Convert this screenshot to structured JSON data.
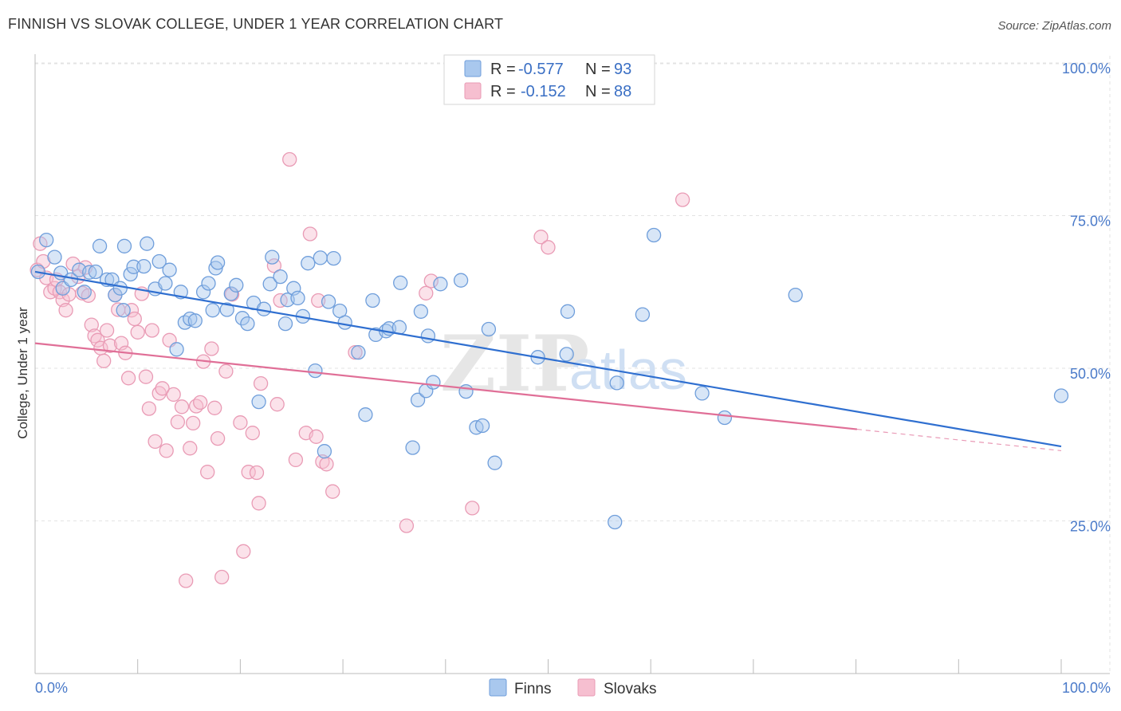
{
  "title": "FINNISH VS SLOVAK COLLEGE, UNDER 1 YEAR CORRELATION CHART",
  "source": "Source: ZipAtlas.com",
  "watermark": {
    "zip": "ZIP",
    "atlas": "atlas"
  },
  "colors": {
    "finns_fill": "#a9c8ee",
    "finns_stroke": "#6f9edb",
    "finns_line": "#2f6fd0",
    "slovaks_fill": "#f6bfd0",
    "slovaks_stroke": "#e99bb5",
    "slovaks_line": "#e06f97",
    "grid": "#e3e3e3",
    "axis_label": "#4a7ac9"
  },
  "legend": {
    "r_label": "R =",
    "n_label": "N =",
    "rows": [
      {
        "series": "Finns",
        "r": "-0.577",
        "n": "93"
      },
      {
        "series": "Slovaks",
        "r": "-0.152",
        "n": "88"
      }
    ]
  },
  "chart_data": {
    "type": "scatter",
    "title": "FINNISH VS SLOVAK COLLEGE, UNDER 1 YEAR CORRELATION CHART",
    "xlabel": "",
    "ylabel": "College, Under 1 year",
    "xlim": [
      0,
      100
    ],
    "ylim": [
      0,
      105
    ],
    "x_tick_labels": [
      "0.0%",
      "100.0%"
    ],
    "y_ticks": [
      25,
      50,
      75,
      100
    ],
    "y_tick_labels": [
      "25.0%",
      "50.0%",
      "75.0%",
      "100.0%"
    ],
    "grid": true,
    "legend_position": "top-center",
    "series": [
      {
        "name": "Finns",
        "trend": {
          "x0": 0,
          "y0": 65.8,
          "x1": 100,
          "y1": 37.2,
          "solid_to": 100
        },
        "points": [
          [
            0.3,
            65.8
          ],
          [
            1.1,
            71
          ],
          [
            1.9,
            68.2
          ],
          [
            2.5,
            65.6
          ],
          [
            2.7,
            63.1
          ],
          [
            3.5,
            64.5
          ],
          [
            4.3,
            66.1
          ],
          [
            4.8,
            62.5
          ],
          [
            5.3,
            65.7
          ],
          [
            5.9,
            65.8
          ],
          [
            6.3,
            70
          ],
          [
            7.0,
            64.5
          ],
          [
            7.5,
            64.5
          ],
          [
            7.8,
            62
          ],
          [
            8.3,
            63.1
          ],
          [
            8.6,
            59.5
          ],
          [
            8.7,
            70
          ],
          [
            9.3,
            65.4
          ],
          [
            9.6,
            66.6
          ],
          [
            10.6,
            66.7
          ],
          [
            10.9,
            70.4
          ],
          [
            11.7,
            63
          ],
          [
            12.1,
            67.5
          ],
          [
            12.7,
            63.9
          ],
          [
            13.1,
            66.1
          ],
          [
            13.8,
            53.1
          ],
          [
            14.2,
            62.5
          ],
          [
            14.6,
            57.5
          ],
          [
            15.1,
            58.1
          ],
          [
            15.6,
            57.8
          ],
          [
            16.4,
            62.5
          ],
          [
            16.9,
            63.9
          ],
          [
            17.3,
            59.5
          ],
          [
            17.6,
            66.4
          ],
          [
            17.8,
            67.3
          ],
          [
            18.7,
            59.6
          ],
          [
            19.1,
            62.2
          ],
          [
            19.6,
            63.6
          ],
          [
            20.2,
            58.2
          ],
          [
            20.7,
            57.3
          ],
          [
            21.3,
            60.7
          ],
          [
            21.8,
            44.5
          ],
          [
            22.3,
            59.7
          ],
          [
            22.9,
            63.8
          ],
          [
            23.1,
            68.2
          ],
          [
            23.9,
            65
          ],
          [
            24.4,
            57.3
          ],
          [
            24.6,
            61.2
          ],
          [
            25.2,
            63.1
          ],
          [
            25.6,
            61.5
          ],
          [
            26.1,
            58.5
          ],
          [
            26.6,
            67.2
          ],
          [
            27.3,
            49.6
          ],
          [
            27.8,
            68.1
          ],
          [
            28.2,
            36.4
          ],
          [
            28.6,
            60.9
          ],
          [
            29.1,
            68
          ],
          [
            29.7,
            59.4
          ],
          [
            30.2,
            57.5
          ],
          [
            31.5,
            52.6
          ],
          [
            32.2,
            42.4
          ],
          [
            32.9,
            61.1
          ],
          [
            33.2,
            55.5
          ],
          [
            34.2,
            56.1
          ],
          [
            34.5,
            56.5
          ],
          [
            35.5,
            56.7
          ],
          [
            35.6,
            64
          ],
          [
            36.8,
            37
          ],
          [
            37.3,
            44.8
          ],
          [
            37.6,
            59.3
          ],
          [
            38.1,
            46.3
          ],
          [
            38.3,
            55.3
          ],
          [
            38.8,
            47.7
          ],
          [
            39.5,
            63.8
          ],
          [
            41.5,
            64.4
          ],
          [
            42.0,
            46.2
          ],
          [
            43.0,
            40.3
          ],
          [
            43.6,
            40.6
          ],
          [
            44.2,
            56.4
          ],
          [
            44.8,
            34.5
          ],
          [
            49.0,
            51.8
          ],
          [
            51.8,
            52.3
          ],
          [
            51.9,
            59.3
          ],
          [
            56.5,
            24.8
          ],
          [
            56.7,
            47.6
          ],
          [
            59.2,
            58.8
          ],
          [
            60.3,
            71.8
          ],
          [
            65.0,
            45.9
          ],
          [
            67.2,
            41.9
          ],
          [
            74.1,
            62
          ],
          [
            100,
            45.5
          ]
        ]
      },
      {
        "name": "Slovaks",
        "trend": {
          "x0": 0,
          "y0": 54.1,
          "x1": 100,
          "y1": 36.5,
          "solid_to": 80.1
        },
        "points": [
          [
            0.2,
            66.1
          ],
          [
            0.5,
            70.4
          ],
          [
            0.8,
            67.5
          ],
          [
            1.1,
            64.8
          ],
          [
            1.5,
            62.5
          ],
          [
            1.9,
            63.1
          ],
          [
            2.1,
            64.5
          ],
          [
            2.4,
            62.5
          ],
          [
            2.7,
            61.2
          ],
          [
            3.0,
            59.5
          ],
          [
            3.3,
            62.1
          ],
          [
            3.7,
            67.1
          ],
          [
            4.2,
            65
          ],
          [
            4.6,
            62.3
          ],
          [
            4.9,
            66.5
          ],
          [
            5.2,
            61.9
          ],
          [
            5.5,
            57.1
          ],
          [
            5.8,
            55.3
          ],
          [
            6.1,
            54.6
          ],
          [
            6.4,
            53.3
          ],
          [
            6.7,
            51.2
          ],
          [
            7.0,
            56.2
          ],
          [
            7.3,
            53.7
          ],
          [
            7.8,
            62
          ],
          [
            8.1,
            59.6
          ],
          [
            8.4,
            54.1
          ],
          [
            8.8,
            52.5
          ],
          [
            9.1,
            48.4
          ],
          [
            9.4,
            59.5
          ],
          [
            9.7,
            58.1
          ],
          [
            10.0,
            55.9
          ],
          [
            10.4,
            62.2
          ],
          [
            10.8,
            48.6
          ],
          [
            11.1,
            43.4
          ],
          [
            11.4,
            56.2
          ],
          [
            11.7,
            38
          ],
          [
            12.1,
            45.9
          ],
          [
            12.4,
            46.7
          ],
          [
            12.8,
            36.5
          ],
          [
            13.1,
            54.6
          ],
          [
            13.5,
            45.7
          ],
          [
            13.9,
            41.2
          ],
          [
            14.3,
            43.7
          ],
          [
            14.7,
            15.2
          ],
          [
            15.1,
            36.9
          ],
          [
            15.4,
            41
          ],
          [
            15.7,
            43.8
          ],
          [
            16.1,
            44.4
          ],
          [
            16.4,
            51.1
          ],
          [
            16.8,
            33
          ],
          [
            17.2,
            53.2
          ],
          [
            17.5,
            43.5
          ],
          [
            17.8,
            38.5
          ],
          [
            18.2,
            15.8
          ],
          [
            18.6,
            49.5
          ],
          [
            19.2,
            62.1
          ],
          [
            20.0,
            41.1
          ],
          [
            20.3,
            20
          ],
          [
            20.8,
            33
          ],
          [
            21.2,
            39.4
          ],
          [
            21.6,
            32.9
          ],
          [
            21.8,
            27.9
          ],
          [
            22.0,
            47.5
          ],
          [
            23.3,
            66.8
          ],
          [
            23.6,
            44.1
          ],
          [
            23.9,
            61.1
          ],
          [
            24.8,
            84.2
          ],
          [
            25.4,
            35
          ],
          [
            26.4,
            39.4
          ],
          [
            26.8,
            72
          ],
          [
            27.4,
            38.8
          ],
          [
            27.6,
            61.1
          ],
          [
            28.0,
            34.7
          ],
          [
            28.4,
            34.3
          ],
          [
            29.0,
            29.8
          ],
          [
            31.2,
            52.6
          ],
          [
            36.2,
            24.2
          ],
          [
            38.1,
            62.3
          ],
          [
            38.6,
            64.3
          ],
          [
            42.6,
            27.1
          ],
          [
            49.3,
            71.5
          ],
          [
            50.0,
            69.8
          ],
          [
            63.1,
            77.6
          ]
        ]
      }
    ]
  }
}
